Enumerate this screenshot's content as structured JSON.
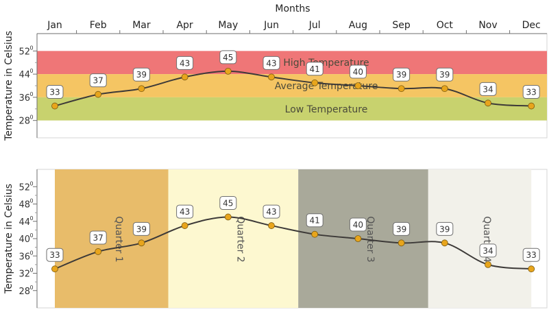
{
  "chart_data": [
    {
      "type": "line",
      "title": "",
      "xlabel": "Months",
      "ylabel": "Temperature in Celsius",
      "categories": [
        "Jan",
        "Feb",
        "Mar",
        "Apr",
        "May",
        "Jun",
        "Jul",
        "Aug",
        "Sep",
        "Oct",
        "Nov",
        "Dec"
      ],
      "series": [
        {
          "values": [
            33,
            37,
            39,
            43,
            45,
            43,
            41,
            40,
            39,
            39,
            34,
            33
          ]
        }
      ],
      "ylim": [
        22,
        58
      ],
      "y_ticks": [
        "52",
        "44",
        "36",
        "28"
      ],
      "tick_suffix": "0",
      "x_axis_position": "top",
      "grid": false,
      "bands": [
        {
          "label": "High Temperature",
          "from": 44,
          "to": 52,
          "color": "#ef7677"
        },
        {
          "label": "Average Temperature",
          "from": 36,
          "to": 44,
          "color": "#f5c563"
        },
        {
          "label": "Low Temperature",
          "from": 28,
          "to": 36,
          "color": "#c8d26e"
        }
      ],
      "line_color": "#3d3a38",
      "marker_color": "#e8a51c"
    },
    {
      "type": "line",
      "title": "",
      "xlabel": "",
      "ylabel": "Temperature in Celsius",
      "categories": [
        "Jan",
        "Feb",
        "Mar",
        "Apr",
        "May",
        "Jun",
        "Jul",
        "Aug",
        "Sep",
        "Oct",
        "Nov",
        "Dec"
      ],
      "series": [
        {
          "values": [
            33,
            37,
            39,
            43,
            45,
            43,
            41,
            40,
            39,
            39,
            34,
            33
          ]
        }
      ],
      "ylim": [
        24,
        56
      ],
      "y_ticks": [
        "52",
        "48",
        "44",
        "40",
        "36",
        "32",
        "28"
      ],
      "tick_suffix": "0",
      "x_axis_position": "none",
      "grid": false,
      "bands": [
        {
          "label": "Quarter 1",
          "from": "Jan",
          "to": "Mar",
          "color": "#e8bc6a"
        },
        {
          "label": "Quarter 2",
          "from": "Apr",
          "to": "Jun",
          "color": "#fdf8d0"
        },
        {
          "label": "Quarter 3",
          "from": "Jul",
          "to": "Sep",
          "color": "#a9a99a"
        },
        {
          "label": "Quarter 4",
          "from": "Oct",
          "to": "Dec",
          "color": "#f2f1ea"
        }
      ],
      "line_color": "#3d3a38",
      "marker_color": "#e8a51c"
    }
  ]
}
